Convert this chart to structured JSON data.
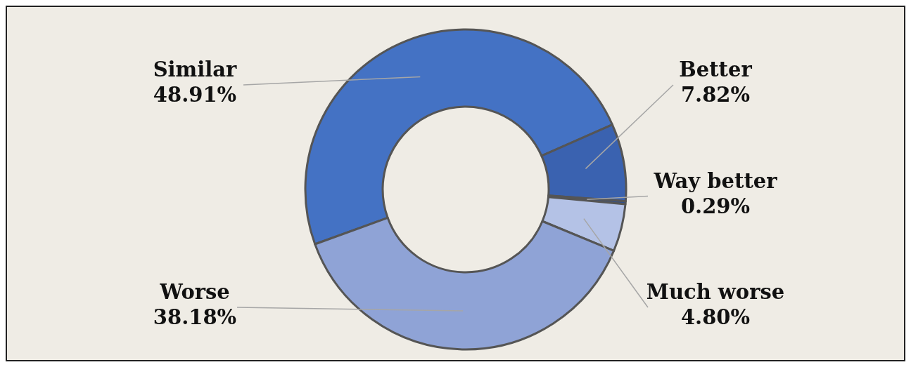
{
  "chart_data": {
    "type": "donut",
    "categories": [
      "Similar",
      "Better",
      "Way better",
      "Much worse",
      "Worse"
    ],
    "values": [
      48.91,
      7.82,
      0.29,
      4.8,
      38.18
    ],
    "value_labels": [
      "48.91%",
      "7.82%",
      "0.29%",
      "4.80%",
      "38.18%"
    ],
    "colors": [
      "#4472c4",
      "#3a62b0",
      "#2f4f8f",
      "#b4c2e6",
      "#8fa3d6"
    ]
  }
}
